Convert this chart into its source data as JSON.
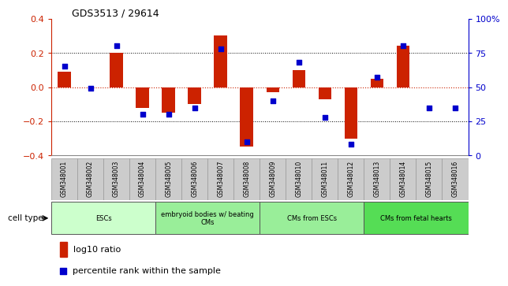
{
  "title": "GDS3513 / 29614",
  "samples": [
    "GSM348001",
    "GSM348002",
    "GSM348003",
    "GSM348004",
    "GSM348005",
    "GSM348006",
    "GSM348007",
    "GSM348008",
    "GSM348009",
    "GSM348010",
    "GSM348011",
    "GSM348012",
    "GSM348013",
    "GSM348014",
    "GSM348015",
    "GSM348016"
  ],
  "log10_ratio": [
    0.09,
    0.0,
    0.2,
    -0.12,
    -0.15,
    -0.1,
    0.3,
    -0.35,
    -0.03,
    0.1,
    -0.07,
    -0.3,
    0.05,
    0.24,
    0.0,
    0.0
  ],
  "percentile_rank": [
    65,
    49,
    80,
    30,
    30,
    35,
    78,
    10,
    40,
    68,
    28,
    8,
    57,
    80,
    35,
    35
  ],
  "ylim_left": [
    -0.4,
    0.4
  ],
  "ylim_right": [
    0,
    100
  ],
  "yticks_left": [
    -0.4,
    -0.2,
    0.0,
    0.2,
    0.4
  ],
  "yticks_right": [
    0,
    25,
    50,
    75,
    100
  ],
  "ytick_labels_right": [
    "0",
    "25",
    "50",
    "75",
    "100%"
  ],
  "bar_color": "#cc2200",
  "dot_color": "#0000cc",
  "zero_line_color": "#cc2200",
  "cell_type_groups": [
    {
      "label": "ESCs",
      "start": 0,
      "end": 3,
      "color": "#ccffcc"
    },
    {
      "label": "embryoid bodies w/ beating\nCMs",
      "start": 4,
      "end": 7,
      "color": "#99ee99"
    },
    {
      "label": "CMs from ESCs",
      "start": 8,
      "end": 11,
      "color": "#99ee99"
    },
    {
      "label": "CMs from fetal hearts",
      "start": 12,
      "end": 15,
      "color": "#55dd55"
    }
  ],
  "cell_type_label": "cell type",
  "legend_bar_label": "log10 ratio",
  "legend_dot_label": "percentile rank within the sample",
  "axis_label_color_left": "#cc2200",
  "axis_label_color_right": "#0000cc",
  "sample_box_color": "#cccccc",
  "sample_box_edge": "#999999",
  "bar_width": 0.5,
  "dot_size": 25
}
